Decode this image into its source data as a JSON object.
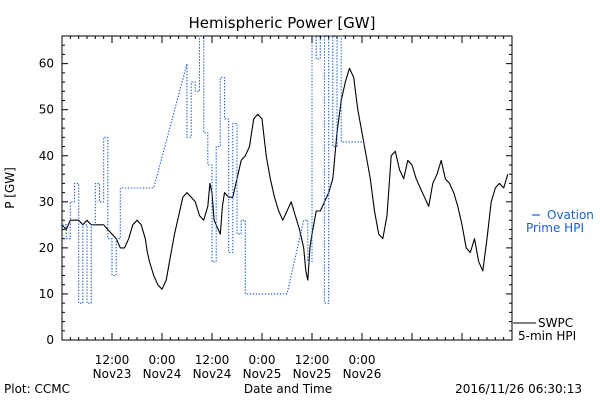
{
  "chart_data": {
    "type": "line",
    "title": "Hemispheric Power [GW]",
    "xlabel": "Date and Time",
    "ylabel": "P [GW]",
    "ylim": [
      0,
      66
    ],
    "xlim": [
      0,
      108
    ],
    "x_unit": "hours since 2016-11-23 00:00",
    "yticks": [
      0,
      10,
      20,
      30,
      40,
      50,
      60
    ],
    "xticks": [
      {
        "x": 12,
        "time": "12:00",
        "date": "Nov23"
      },
      {
        "x": 24,
        "time": "0:00",
        "date": "Nov24"
      },
      {
        "x": 36,
        "time": "12:00",
        "date": "Nov24"
      },
      {
        "x": 48,
        "time": "0:00",
        "date": "Nov25"
      },
      {
        "x": 60,
        "time": "12:00",
        "date": "Nov25"
      },
      {
        "x": 72,
        "time": "0:00",
        "date": "Nov26"
      }
    ],
    "grid": false,
    "series": [
      {
        "name": "SWPC 5-min HPI",
        "style": "solid",
        "color": "#000000",
        "points": [
          [
            0,
            25
          ],
          [
            1,
            24
          ],
          [
            2,
            26
          ],
          [
            3,
            26
          ],
          [
            4,
            26
          ],
          [
            5,
            25
          ],
          [
            6,
            26
          ],
          [
            7,
            25
          ],
          [
            8,
            25
          ],
          [
            9,
            25
          ],
          [
            10,
            25
          ],
          [
            11,
            24
          ],
          [
            12,
            23
          ],
          [
            13,
            22
          ],
          [
            14,
            20
          ],
          [
            15,
            20
          ],
          [
            16,
            22
          ],
          [
            17,
            25
          ],
          [
            18,
            26
          ],
          [
            19,
            25
          ],
          [
            20,
            22
          ],
          [
            20.5,
            19
          ],
          [
            21,
            17
          ],
          [
            22,
            14
          ],
          [
            23,
            12
          ],
          [
            24,
            11
          ],
          [
            25,
            13
          ],
          [
            26,
            18
          ],
          [
            27,
            23
          ],
          [
            28,
            27
          ],
          [
            29,
            31
          ],
          [
            30,
            32
          ],
          [
            31,
            31
          ],
          [
            32,
            30
          ],
          [
            33,
            27
          ],
          [
            34,
            26
          ],
          [
            35,
            29
          ],
          [
            35.5,
            34
          ],
          [
            36,
            32
          ],
          [
            36.5,
            26
          ],
          [
            37,
            25
          ],
          [
            38,
            23
          ],
          [
            38.5,
            29
          ],
          [
            39,
            32
          ],
          [
            40,
            31
          ],
          [
            41,
            31
          ],
          [
            42,
            35
          ],
          [
            43,
            39
          ],
          [
            44,
            40
          ],
          [
            45,
            42
          ],
          [
            46,
            48
          ],
          [
            47,
            49
          ],
          [
            48,
            48
          ],
          [
            49,
            40
          ],
          [
            50,
            35
          ],
          [
            51,
            31
          ],
          [
            52,
            28
          ],
          [
            53,
            26
          ],
          [
            54,
            28
          ],
          [
            55,
            30
          ],
          [
            56,
            27
          ],
          [
            57,
            24
          ],
          [
            58,
            20
          ],
          [
            58.5,
            15
          ],
          [
            59,
            13
          ],
          [
            59.5,
            20
          ],
          [
            60,
            23
          ],
          [
            61,
            28
          ],
          [
            62,
            28
          ],
          [
            63,
            30
          ],
          [
            64,
            32
          ],
          [
            65,
            35
          ],
          [
            66,
            45
          ],
          [
            67,
            52
          ],
          [
            68,
            56
          ],
          [
            69,
            59
          ],
          [
            70,
            57
          ],
          [
            71,
            50
          ],
          [
            72,
            45
          ],
          [
            73,
            40
          ],
          [
            74,
            35
          ],
          [
            75,
            28
          ],
          [
            76,
            23
          ],
          [
            77,
            22
          ],
          [
            78,
            27
          ],
          [
            79,
            40
          ],
          [
            80,
            41
          ],
          [
            81,
            37
          ],
          [
            82,
            35
          ],
          [
            83,
            39
          ],
          [
            84,
            38
          ],
          [
            85,
            35
          ],
          [
            86,
            33
          ],
          [
            87,
            31
          ],
          [
            88,
            29
          ],
          [
            89,
            34
          ],
          [
            90,
            36
          ],
          [
            91,
            39
          ],
          [
            92,
            35
          ],
          [
            93,
            34
          ],
          [
            94,
            32
          ],
          [
            95,
            29
          ],
          [
            96,
            25
          ],
          [
            97,
            20
          ],
          [
            98,
            19
          ],
          [
            99,
            22
          ],
          [
            100,
            17
          ],
          [
            101,
            15
          ],
          [
            102,
            22
          ],
          [
            103,
            30
          ],
          [
            104,
            33
          ],
          [
            105,
            34
          ],
          [
            106,
            33
          ],
          [
            107,
            36
          ]
        ]
      },
      {
        "name": "Ovation Prime HPI",
        "style": "dotted",
        "color": "#1f5fc8",
        "points": [
          [
            0,
            25
          ],
          [
            1,
            25
          ],
          [
            1,
            22
          ],
          [
            2,
            22
          ],
          [
            2,
            30
          ],
          [
            3,
            30
          ],
          [
            3,
            34
          ],
          [
            4,
            34
          ],
          [
            4,
            8
          ],
          [
            5,
            8
          ],
          [
            5,
            25
          ],
          [
            6,
            25
          ],
          [
            6,
            8
          ],
          [
            7,
            8
          ],
          [
            7,
            25
          ],
          [
            8,
            25
          ],
          [
            8,
            34
          ],
          [
            9,
            34
          ],
          [
            9,
            30
          ],
          [
            10,
            30
          ],
          [
            10,
            44
          ],
          [
            11,
            44
          ],
          [
            11,
            22
          ],
          [
            12,
            22
          ],
          [
            12,
            14
          ],
          [
            13,
            14
          ],
          [
            13,
            22
          ],
          [
            14,
            22
          ],
          [
            14,
            33
          ],
          [
            15,
            33
          ],
          [
            16,
            33
          ],
          [
            17,
            33
          ],
          [
            18,
            33
          ],
          [
            19,
            33
          ],
          [
            20,
            33
          ],
          [
            21,
            33
          ],
          [
            22,
            33
          ],
          [
            30,
            60
          ],
          [
            30,
            44
          ],
          [
            31,
            44
          ],
          [
            31,
            56
          ],
          [
            32,
            56
          ],
          [
            32,
            54
          ],
          [
            33,
            54
          ],
          [
            33,
            66
          ],
          [
            34,
            66
          ],
          [
            34,
            45
          ],
          [
            35,
            45
          ],
          [
            35,
            38
          ],
          [
            36,
            38
          ],
          [
            36,
            17
          ],
          [
            37,
            17
          ],
          [
            37,
            42
          ],
          [
            38,
            42
          ],
          [
            38,
            57
          ],
          [
            39,
            57
          ],
          [
            39,
            48
          ],
          [
            40,
            48
          ],
          [
            40,
            19
          ],
          [
            41,
            19
          ],
          [
            41,
            47
          ],
          [
            42,
            47
          ],
          [
            42,
            23
          ],
          [
            43,
            23
          ],
          [
            43,
            26
          ],
          [
            44,
            26
          ],
          [
            44,
            10
          ],
          [
            46,
            10
          ],
          [
            48,
            10
          ],
          [
            50,
            10
          ],
          [
            54,
            10
          ],
          [
            58,
            26
          ],
          [
            59,
            26
          ],
          [
            59,
            17
          ],
          [
            60,
            17
          ],
          [
            60,
            66
          ],
          [
            61,
            66
          ],
          [
            61,
            61
          ],
          [
            62,
            61
          ],
          [
            62,
            66
          ],
          [
            63,
            66
          ],
          [
            63,
            8
          ],
          [
            64,
            8
          ],
          [
            64,
            66
          ],
          [
            65,
            66
          ],
          [
            65,
            42
          ],
          [
            66,
            42
          ],
          [
            66,
            66
          ],
          [
            67,
            66
          ],
          [
            67,
            43
          ],
          [
            68,
            43
          ],
          [
            70,
            43
          ],
          [
            72,
            43
          ]
        ]
      }
    ],
    "legend": [
      {
        "series": "Ovation Prime HPI",
        "line1": "Ovation",
        "line2": "Prime HPI",
        "position": "right-middle"
      },
      {
        "series": "SWPC 5-min HPI",
        "line1": "SWPC",
        "line2": "5-min HPI",
        "position": "right-bottom"
      }
    ]
  },
  "footer": {
    "plot_credit": "Plot: CCMC",
    "timestamp": "2016/11/26 06:30:13"
  },
  "colors": {
    "ovation": "#1f5fc8",
    "swpc": "#000000"
  }
}
